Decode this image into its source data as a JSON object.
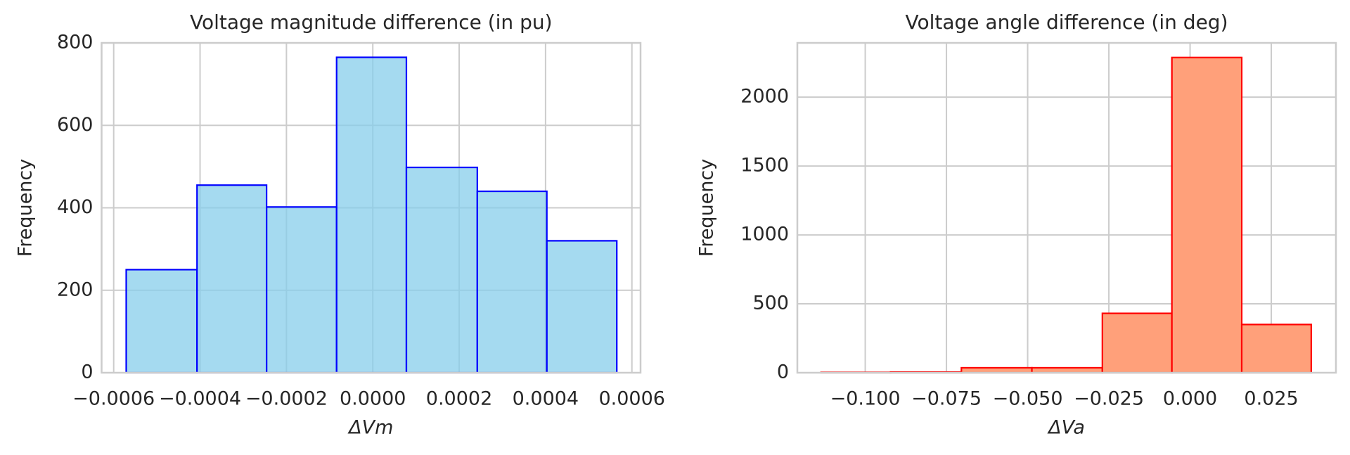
{
  "chart_data": [
    {
      "type": "histogram",
      "title": "Voltage magnitude difference (in pu)",
      "xlabel": "ΔVm",
      "ylabel": "Frequency",
      "bins": [
        -0.000571,
        -0.000407,
        -0.000246,
        -8.38e-05,
        7.78e-05,
        0.000242,
        0.000403,
        0.000565
      ],
      "counts": [
        250,
        455,
        402,
        765,
        498,
        440,
        320
      ],
      "color": "#87ceeb",
      "edgecolor": "#0000ff",
      "alpha": 0.75,
      "xlim": [
        -0.000628,
        0.00062
      ],
      "ylim": [
        0,
        800
      ],
      "xticks": [
        {
          "value": -0.0006,
          "label": "−0.0006"
        },
        {
          "value": -0.0004,
          "label": "−0.0004"
        },
        {
          "value": -0.0002,
          "label": "−0.0002"
        },
        {
          "value": 0,
          "label": "0.0000"
        },
        {
          "value": 0.0002,
          "label": "0.0002"
        },
        {
          "value": 0.0004,
          "label": "0.0004"
        },
        {
          "value": 0.0006,
          "label": "0.0006"
        }
      ],
      "yticks": [
        0,
        200,
        400,
        600,
        800
      ],
      "grid": true
    },
    {
      "type": "histogram",
      "title": "Voltage angle difference (in deg)",
      "xlabel": "ΔVa",
      "ylabel": "Frequency",
      "bins": [
        -0.1136,
        -0.0922,
        -0.0704,
        -0.0487,
        -0.027,
        -0.0056,
        0.0159,
        0.0373
      ],
      "counts": [
        3,
        5,
        36,
        36,
        431,
        2288,
        350
      ],
      "color": "#ffa07a",
      "edgecolor": "#ff0000",
      "alpha": 1,
      "xlim": [
        -0.1209,
        0.0449
      ],
      "ylim": [
        0,
        2394
      ],
      "xticks": [
        {
          "value": -0.1,
          "label": "−0.100"
        },
        {
          "value": -0.075,
          "label": "−0.075"
        },
        {
          "value": -0.05,
          "label": "−0.050"
        },
        {
          "value": -0.025,
          "label": "−0.025"
        },
        {
          "value": 0,
          "label": "0.000"
        },
        {
          "value": 0.025,
          "label": "0.025"
        }
      ],
      "yticks": [
        0,
        500,
        1000,
        1500,
        2000
      ],
      "grid": true
    }
  ]
}
